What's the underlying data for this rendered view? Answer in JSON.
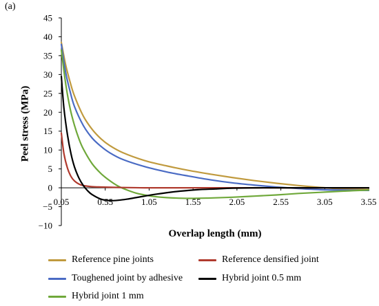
{
  "panel_label": "(a)",
  "chart_data": {
    "type": "line",
    "xlabel": "Overlap length (mm)",
    "ylabel": "Peel stress (MPa)",
    "xlim": [
      0.05,
      3.55
    ],
    "ylim": [
      -10,
      45
    ],
    "x_ticks": [
      "0.05",
      "0.55",
      "1.05",
      "1.55",
      "2.05",
      "2.55",
      "3.05",
      "3.55"
    ],
    "y_ticks": [
      "45",
      "40",
      "35",
      "30",
      "25",
      "20",
      "15",
      "10",
      "5",
      "0",
      "−5",
      "−10"
    ],
    "grid": false,
    "legend_position": "bottom",
    "series": [
      {
        "name": "Reference pine joints",
        "color": "#C09A3E",
        "x": [
          0.05,
          0.1,
          0.15,
          0.2,
          0.3,
          0.4,
          0.5,
          0.6,
          0.75,
          1.0,
          1.25,
          1.5,
          1.75,
          2.0,
          2.25,
          2.5,
          2.75,
          3.0,
          3.25,
          3.55
        ],
        "y": [
          38.5,
          32.5,
          28.0,
          24.3,
          19.0,
          15.5,
          13.0,
          11.2,
          9.3,
          7.2,
          5.8,
          4.6,
          3.6,
          2.7,
          1.9,
          1.2,
          0.6,
          0.1,
          -0.3,
          -0.5
        ]
      },
      {
        "name": "Reference densified joint",
        "color": "#B03A2E",
        "x": [
          0.05,
          0.08,
          0.12,
          0.16,
          0.2,
          0.25,
          0.3,
          0.4,
          0.5,
          0.7,
          1.0,
          1.5,
          2.0,
          2.5,
          3.0,
          3.55
        ],
        "y": [
          14.5,
          9.0,
          5.2,
          3.0,
          1.8,
          1.0,
          0.6,
          0.3,
          0.2,
          0.1,
          0.0,
          0.0,
          0.0,
          0.0,
          0.0,
          0.0
        ]
      },
      {
        "name": "Toughened joint by adhesive",
        "color": "#4A6BC4",
        "x": [
          0.05,
          0.1,
          0.15,
          0.2,
          0.3,
          0.4,
          0.5,
          0.6,
          0.75,
          1.0,
          1.25,
          1.5,
          1.75,
          2.0,
          2.25,
          2.5,
          2.75,
          3.0,
          3.25,
          3.55
        ],
        "y": [
          38.0,
          30.5,
          25.5,
          21.5,
          16.5,
          13.2,
          11.0,
          9.3,
          7.5,
          5.6,
          4.2,
          3.1,
          2.1,
          1.3,
          0.7,
          0.2,
          -0.2,
          -0.5,
          -0.6,
          -0.7
        ]
      },
      {
        "name": "Hybrid joint 0.5 mm",
        "color": "#000000",
        "x": [
          0.05,
          0.08,
          0.12,
          0.16,
          0.2,
          0.25,
          0.3,
          0.35,
          0.4,
          0.5,
          0.6,
          0.7,
          0.8,
          0.9,
          1.0,
          1.1,
          1.25,
          1.4,
          1.6,
          1.8,
          2.0,
          2.3,
          2.6,
          3.0,
          3.55
        ],
        "y": [
          29.5,
          21.0,
          14.0,
          9.0,
          5.5,
          2.6,
          0.6,
          -0.8,
          -1.8,
          -3.0,
          -3.4,
          -3.3,
          -3.0,
          -2.6,
          -2.2,
          -1.8,
          -1.3,
          -0.9,
          -0.5,
          -0.3,
          -0.1,
          0.0,
          0.0,
          0.0,
          0.0
        ]
      },
      {
        "name": "Hybrid joint 1 mm",
        "color": "#6FA83A",
        "x": [
          0.05,
          0.1,
          0.15,
          0.2,
          0.25,
          0.3,
          0.4,
          0.5,
          0.6,
          0.7,
          0.8,
          0.9,
          1.0,
          1.1,
          1.25,
          1.5,
          1.75,
          2.0,
          2.25,
          2.5,
          2.75,
          3.0,
          3.25,
          3.55
        ],
        "y": [
          36.5,
          27.5,
          21.0,
          16.5,
          13.0,
          10.3,
          6.4,
          3.8,
          1.9,
          0.4,
          -0.6,
          -1.4,
          -1.9,
          -2.3,
          -2.6,
          -2.8,
          -2.7,
          -2.5,
          -2.2,
          -1.9,
          -1.5,
          -1.2,
          -0.9,
          -0.6
        ]
      }
    ]
  }
}
